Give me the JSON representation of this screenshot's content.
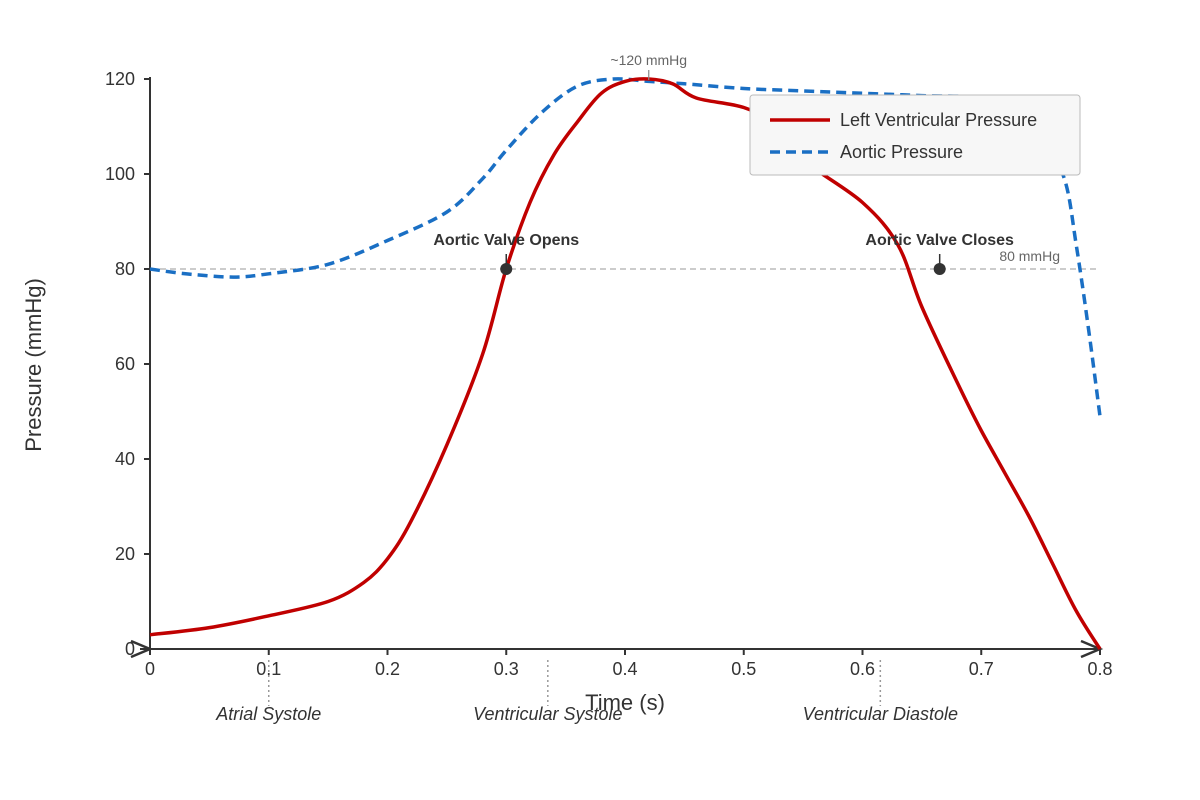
{
  "chart_data": {
    "type": "line",
    "title": "",
    "xlabel": "Time (s)",
    "ylabel": "Pressure (mmHg)",
    "xlim": [
      0,
      0.8
    ],
    "ylim": [
      0,
      120
    ],
    "x_ticks": [
      "0",
      "0.1",
      "0.2",
      "0.3",
      "0.4",
      "0.5",
      "0.6",
      "0.7",
      "0.8"
    ],
    "y_ticks": [
      "0",
      "20",
      "40",
      "60",
      "80",
      "100",
      "120"
    ],
    "grid": false,
    "legend": "top-right",
    "series": [
      {
        "name": "Left Ventricular Pressure",
        "color": "#c00000",
        "style": "solid",
        "x": [
          0,
          0.05,
          0.1,
          0.15,
          0.18,
          0.2,
          0.22,
          0.25,
          0.28,
          0.3,
          0.32,
          0.34,
          0.36,
          0.38,
          0.4,
          0.42,
          0.44,
          0.46,
          0.5,
          0.53,
          0.55,
          0.6,
          0.63,
          0.65,
          0.68,
          0.7,
          0.72,
          0.74,
          0.76,
          0.78,
          0.8
        ],
        "y": [
          3,
          4.5,
          7,
          10,
          14,
          19,
          27,
          43,
          62,
          80,
          94,
          104,
          111,
          117,
          119.5,
          120,
          119,
          116,
          114,
          110,
          103,
          94,
          85,
          72,
          56,
          46,
          37,
          28,
          18,
          8,
          0
        ]
      },
      {
        "name": "Aortic Pressure",
        "color": "#1a6fc4",
        "style": "dashed",
        "x": [
          0,
          0.03,
          0.07,
          0.1,
          0.15,
          0.2,
          0.25,
          0.28,
          0.3,
          0.33,
          0.36,
          0.39,
          0.42,
          0.45,
          0.5,
          0.55,
          0.6,
          0.65,
          0.7,
          0.73,
          0.75,
          0.77,
          0.78,
          0.79,
          0.8
        ],
        "y": [
          80,
          79,
          78.3,
          79,
          81,
          86,
          92,
          99,
          105,
          113,
          118.5,
          120,
          119.5,
          119,
          118,
          117.5,
          117,
          116.5,
          116,
          113,
          108,
          99,
          85,
          68,
          49
        ]
      }
    ],
    "reference_line": {
      "y": 80,
      "label": "80 mmHg"
    },
    "peak_label": {
      "x": 0.42,
      "text": "~120 mmHg"
    },
    "annotations": [
      {
        "x": 0.3,
        "y": 80,
        "text": "Aortic Valve Opens"
      },
      {
        "x": 0.665,
        "y": 80,
        "text": "Aortic Valve Closes"
      }
    ],
    "phases": [
      {
        "x": 0.1,
        "text": "Atrial Systole"
      },
      {
        "x": 0.335,
        "text": "Ventricular Systole"
      },
      {
        "x": 0.615,
        "text": "Ventricular Diastole"
      }
    ]
  }
}
